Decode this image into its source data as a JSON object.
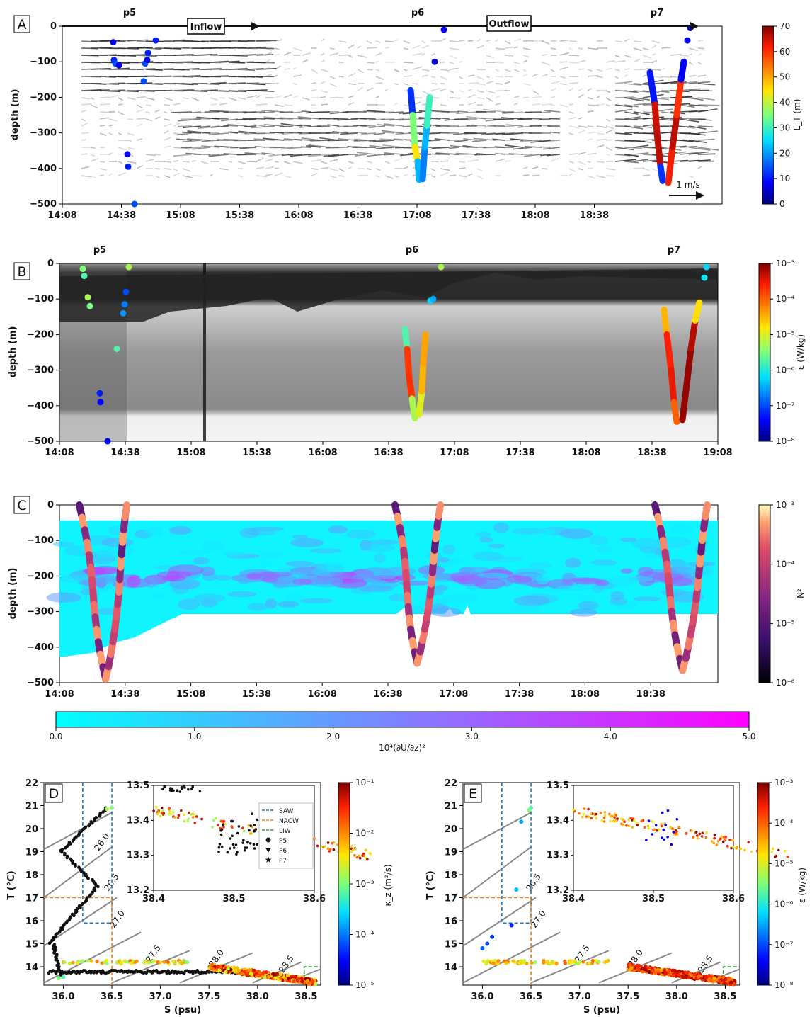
{
  "chart_data": [
    {
      "panel": "A",
      "type": "scatter",
      "xlabel": "",
      "ylabel": "depth (m)",
      "x_ticks": [
        "14:08",
        "14:38",
        "15:08",
        "15:38",
        "16:08",
        "16:38",
        "17:08",
        "17:38",
        "18:08",
        "18:38"
      ],
      "y_ticks": [
        "0",
        "−100",
        "−200",
        "−300",
        "−400",
        "−500"
      ],
      "ylim": [
        -500,
        0
      ],
      "profile_labels": [
        "p5",
        "p6",
        "p7"
      ],
      "flow_labels": [
        "Inflow",
        "Outflow"
      ],
      "scale_label": "1 m/s",
      "colorbar": {
        "label": "L_T (m)",
        "ticks": [
          "0",
          "10",
          "20",
          "30",
          "40",
          "50",
          "60",
          "70"
        ]
      },
      "series": [
        {
          "profile": "p5",
          "lt_values": [
            2,
            3,
            5,
            4,
            2,
            1,
            3,
            2
          ]
        },
        {
          "profile": "p6",
          "lt_values": [
            12,
            35,
            45,
            22,
            18,
            8,
            5
          ]
        },
        {
          "profile": "p7",
          "lt_values": [
            10,
            65,
            68,
            60,
            8,
            66,
            12
          ]
        }
      ]
    },
    {
      "panel": "B",
      "type": "scatter",
      "ylabel": "depth (m)",
      "x_ticks": [
        "14:08",
        "14:38",
        "15:08",
        "15:38",
        "16:08",
        "16:38",
        "17:08",
        "17:38",
        "18:08",
        "18:38",
        "19:08"
      ],
      "y_ticks": [
        "0",
        "−100",
        "−200",
        "−300",
        "−400",
        "−500"
      ],
      "ylim": [
        -500,
        0
      ],
      "profile_labels": [
        "p5",
        "p6",
        "p7"
      ],
      "colorbar": {
        "label": "ε (W/kg)",
        "ticks": [
          "10⁻³",
          "10⁻⁴",
          "10⁻⁵",
          "10⁻⁶",
          "10⁻⁷",
          "10⁻⁸"
        ]
      }
    },
    {
      "panel": "C",
      "type": "heatmap",
      "ylabel": "depth (m)",
      "x_ticks": [
        "14:08",
        "14:38",
        "15:08",
        "15:38",
        "16:08",
        "16:38",
        "17:08",
        "17:38",
        "18:08",
        "18:38"
      ],
      "y_ticks": [
        "0",
        "−100",
        "−200",
        "−300",
        "−400",
        "−500"
      ],
      "ylim": [
        -500,
        0
      ],
      "colorbar": {
        "label": "N²",
        "ticks": [
          "10⁻³",
          "10⁻⁴",
          "10⁻⁵",
          "10⁻⁶"
        ]
      },
      "shear_colorbar": {
        "label": "10⁴(∂U/∂z)²",
        "ticks": [
          "0.0",
          "1.0",
          "2.0",
          "3.0",
          "4.0",
          "5.0"
        ],
        "range": [
          0,
          5
        ]
      }
    },
    {
      "panel": "D",
      "type": "scatter",
      "xlabel": "S (psu)",
      "ylabel": "T (°C)",
      "xlim": [
        35.8,
        38.65
      ],
      "ylim": [
        13.2,
        22
      ],
      "x_ticks": [
        "36.0",
        "36.5",
        "37.0",
        "37.5",
        "38.0",
        "38.5"
      ],
      "y_ticks": [
        "14",
        "15",
        "16",
        "17",
        "18",
        "19",
        "20",
        "21",
        "22"
      ],
      "density_labels": [
        "26.0",
        "26.5",
        "27.0",
        "27.5",
        "28.0",
        "28.5"
      ],
      "colorbar": {
        "label": "κ_z (m²/s)",
        "ticks": [
          "10⁻¹",
          "10⁻²",
          "10⁻³",
          "10⁻⁴",
          "10⁻⁵"
        ]
      },
      "inset": {
        "xlim": [
          38.4,
          38.6
        ],
        "ylim": [
          13.2,
          13.5
        ],
        "x_ticks": [
          "38.4",
          "38.5",
          "38.6"
        ],
        "y_ticks": [
          "13.2",
          "13.3",
          "13.4",
          "13.5"
        ]
      },
      "legend": [
        "SAW",
        "NACW",
        "LIW",
        "P5",
        "P6",
        "P7"
      ]
    },
    {
      "panel": "E",
      "type": "scatter",
      "xlabel": "S (psu)",
      "ylabel": "T (°C)",
      "xlim": [
        35.8,
        38.65
      ],
      "ylim": [
        13.2,
        22
      ],
      "x_ticks": [
        "36.0",
        "36.5",
        "37.0",
        "37.5",
        "38.0",
        "38.5"
      ],
      "y_ticks": [
        "14",
        "15",
        "16",
        "17",
        "18",
        "19",
        "20",
        "21",
        "22"
      ],
      "density_labels": [
        "26.5",
        "27.0",
        "27.5",
        "28.0",
        "28.5"
      ],
      "colorbar": {
        "label": "ε (W/kg)",
        "ticks": [
          "10⁻³",
          "10⁻⁴",
          "10⁻⁵",
          "10⁻⁶",
          "10⁻⁷",
          "10⁻⁸"
        ]
      },
      "inset": {
        "xlim": [
          38.4,
          38.6
        ],
        "ylim": [
          13.2,
          13.5
        ],
        "x_ticks": [
          "38.4",
          "38.5",
          "38.6"
        ],
        "y_ticks": [
          "13.2",
          "13.3",
          "13.4",
          "13.5"
        ]
      }
    }
  ],
  "colors": {
    "SAW": "#1f77b4",
    "NACW": "#ff7f0e",
    "LIW": "#2ca02c"
  }
}
